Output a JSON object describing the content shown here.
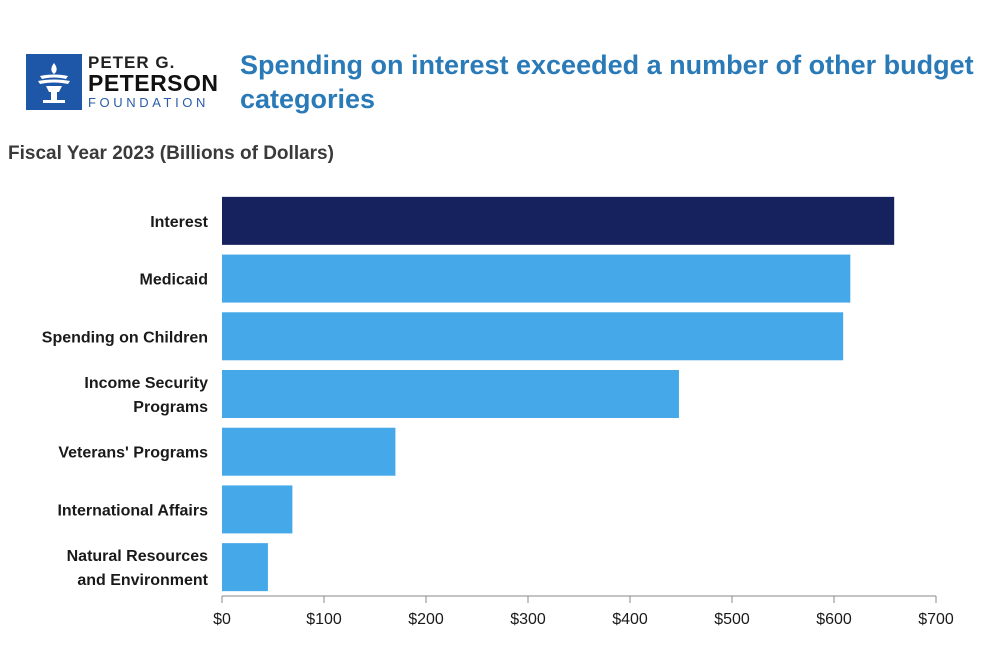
{
  "header": {
    "logo": {
      "line1": "PETER G.",
      "line2": "PETERSON",
      "line3": "FOUNDATION",
      "icon": "torch-icon",
      "color": "#1f57a8"
    },
    "title": "Spending on interest exceeded a number of other budget categories"
  },
  "subtitle": "Fiscal Year 2023 (Billions of Dollars)",
  "chart_data": {
    "type": "bar",
    "orientation": "horizontal",
    "categories": [
      [
        "Interest"
      ],
      [
        "Medicaid"
      ],
      [
        "Spending on Children"
      ],
      [
        "Income Security",
        "Programs"
      ],
      [
        "Veterans' Programs"
      ],
      [
        "International Affairs"
      ],
      [
        "Natural Resources",
        "and Environment"
      ]
    ],
    "values": [
      659,
      616,
      609,
      448,
      170,
      69,
      45
    ],
    "colors": [
      "#15225e",
      "#45a8e8",
      "#45a8e8",
      "#45a8e8",
      "#45a8e8",
      "#45a8e8",
      "#45a8e8"
    ],
    "xlim": [
      0,
      700
    ],
    "ticks": [
      0,
      100,
      200,
      300,
      400,
      500,
      600,
      700
    ],
    "tick_labels": [
      "$0",
      "$100",
      "$200",
      "$300",
      "$400",
      "$500",
      "$600",
      "$700"
    ],
    "title": "Spending on interest exceeded a number of other budget categories",
    "subtitle": "Fiscal Year 2023 (Billions of Dollars)",
    "grid": false
  }
}
